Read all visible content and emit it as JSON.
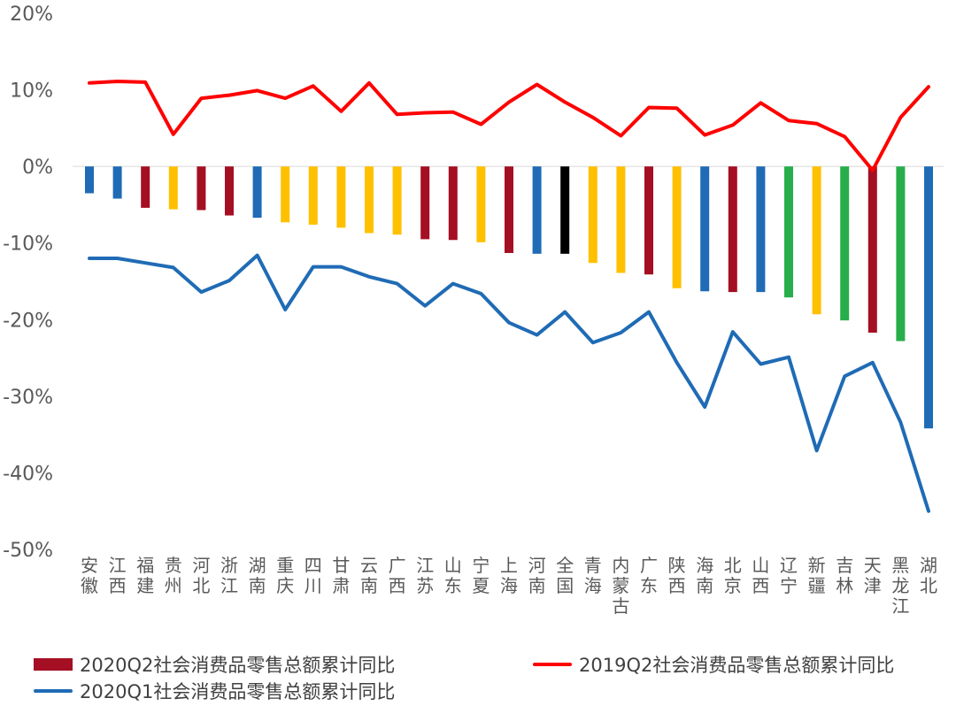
{
  "chart_data": {
    "type": "bar",
    "y_ticks": [
      "20%",
      "10%",
      "0%",
      "-10%",
      "-20%",
      "-30%",
      "-40%",
      "-50%"
    ],
    "ylim": [
      -50,
      20
    ],
    "categories": [
      "安徽",
      "江西",
      "福建",
      "贵州",
      "河北",
      "浙江",
      "湖南",
      "重庆",
      "四川",
      "甘肃",
      "云南",
      "广西",
      "江苏",
      "山东",
      "宁夏",
      "上海",
      "河南",
      "全国",
      "青海",
      "内蒙古",
      "广东",
      "陕西",
      "海南",
      "北京",
      "山西",
      "辽宁",
      "新疆",
      "吉林",
      "天津",
      "黑龙江",
      "湖北"
    ],
    "bar_colors": [
      "#1f6bb5",
      "#1f6bb5",
      "#a50f23",
      "#ffc000",
      "#a50f23",
      "#a50f23",
      "#1f6bb5",
      "#ffc000",
      "#ffc000",
      "#ffc000",
      "#ffc000",
      "#ffc000",
      "#a50f23",
      "#a50f23",
      "#ffc000",
      "#a50f23",
      "#1f6bb5",
      "#000000",
      "#ffc000",
      "#ffc000",
      "#a50f23",
      "#ffc000",
      "#1f6bb5",
      "#a50f23",
      "#1f6bb5",
      "#27ae4a",
      "#ffc000",
      "#27ae4a",
      "#a50f23",
      "#27ae4a",
      "#1f6bb5"
    ],
    "series": [
      {
        "name": "2020Q2社会消费品零售总额累计同比",
        "kind": "bar",
        "color": "#a50f23",
        "values": [
          -3.5,
          -4.2,
          -5.4,
          -5.6,
          -5.7,
          -6.4,
          -6.7,
          -7.3,
          -7.6,
          -8.0,
          -8.7,
          -8.9,
          -9.5,
          -9.6,
          -9.9,
          -11.3,
          -11.4,
          -11.4,
          -12.6,
          -13.9,
          -14.1,
          -15.9,
          -16.3,
          -16.4,
          -16.4,
          -17.1,
          -19.3,
          -20.1,
          -21.7,
          -22.8,
          -34.2
        ]
      },
      {
        "name": "2019Q2社会消费品零售总额累计同比",
        "kind": "line",
        "color": "#ff0000",
        "values": [
          10.9,
          11.1,
          11.0,
          4.2,
          8.9,
          9.3,
          9.9,
          8.9,
          10.5,
          7.2,
          10.9,
          6.8,
          7.0,
          7.1,
          5.5,
          8.4,
          10.7,
          8.4,
          6.4,
          4.0,
          7.7,
          7.6,
          4.1,
          5.4,
          8.3,
          6.0,
          5.6,
          3.9,
          -0.5,
          6.4,
          10.4
        ]
      },
      {
        "name": "2020Q1社会消费品零售总额累计同比",
        "kind": "line",
        "color": "#1f6bb5",
        "values": [
          -12.0,
          -12.0,
          -12.6,
          -13.2,
          -16.4,
          -14.9,
          -11.6,
          -18.7,
          -13.1,
          -13.1,
          -14.4,
          -15.3,
          -18.2,
          -15.3,
          -16.6,
          -20.4,
          -22.0,
          -19.0,
          -23.0,
          -21.7,
          -19.0,
          -25.6,
          -31.4,
          -21.6,
          -25.8,
          -24.9,
          -37.1,
          -27.4,
          -25.6,
          -33.4,
          -45.0
        ]
      }
    ]
  },
  "legend": {
    "q2_2020": "2020Q2社会消费品零售总额累计同比",
    "q2_2019": "2019Q2社会消费品零售总额累计同比",
    "q1_2020": "2020Q1社会消费品零售总额累计同比"
  }
}
